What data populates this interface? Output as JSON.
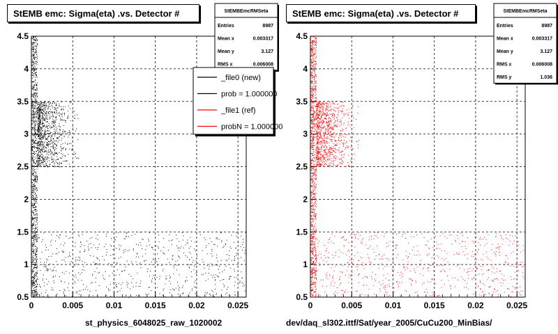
{
  "panels": [
    {
      "title": "StEMB emc: Sigma(eta) .vs. Detector #",
      "xlabel": "st_physics_6048025_raw_1020002",
      "stats": {
        "name": "StEMBEmcRMSeta",
        "rows": [
          {
            "label": "Entries",
            "value": "8987"
          },
          {
            "label": "Mean x",
            "value": "0.003317"
          },
          {
            "label": "Mean y",
            "value": "3.127"
          },
          {
            "label": "RMS x",
            "value": "0.006008"
          }
        ]
      },
      "legend": [
        {
          "text": "_file0 (new)",
          "color": "#000000"
        },
        {
          "text": "prob = 1.000000",
          "color": "#000000"
        },
        {
          "text": "_file1 (ref)",
          "color": "#ff0000"
        },
        {
          "text": "probN = 1.000000",
          "color": "#ff0000"
        }
      ],
      "marker_color": "#000000"
    },
    {
      "title": "StEMB emc: Sigma(eta) .vs. Detector #",
      "xlabel": "dev/daq_sl302.ittf/Sat/year_2005/CuCu200_MinBias/",
      "stats": {
        "name": "StEMBEmcRMSeta",
        "rows": [
          {
            "label": "Entries",
            "value": "8987"
          },
          {
            "label": "Mean x",
            "value": "0.003317"
          },
          {
            "label": "Mean y",
            "value": "3.127"
          },
          {
            "label": "RMS x",
            "value": "0.006008"
          },
          {
            "label": "RMS y",
            "value": "1.036"
          }
        ]
      },
      "marker_color": "#ff0000"
    }
  ],
  "chart_data": [
    {
      "type": "scatter",
      "title": "StEMB emc: Sigma(eta) .vs. Detector #",
      "xlabel": "st_physics_6048025_raw_1020002",
      "xlim": [
        0,
        0.026
      ],
      "ylim": [
        0.5,
        4.5
      ],
      "xticks": [
        "0",
        "0.005",
        "0.01",
        "0.015",
        "0.02",
        "0.025"
      ],
      "yticks": [
        "0.5",
        "1",
        "1.5",
        "2",
        "2.5",
        "3",
        "3.5",
        "4",
        "4.5"
      ],
      "grid": true,
      "legend_position": "top-right",
      "series": [
        {
          "name": "_file0 (new)",
          "color": "#000000",
          "regions": [
            {
              "x": [
                0.0,
                0.0007
              ],
              "y": [
                0.5,
                4.5
              ],
              "density": "dense"
            },
            {
              "x": [
                0.0007,
                0.006
              ],
              "y": [
                2.5,
                3.5
              ],
              "density": "medium"
            },
            {
              "x": [
                0.0,
                0.026
              ],
              "y": [
                0.5,
                1.5
              ],
              "density": "sparse"
            }
          ]
        }
      ]
    },
    {
      "type": "scatter",
      "title": "StEMB emc: Sigma(eta) .vs. Detector #",
      "xlabel": "dev/daq_sl302.ittf/Sat/year_2005/CuCu200_MinBias/",
      "xlim": [
        0,
        0.026
      ],
      "ylim": [
        0.5,
        4.5
      ],
      "xticks": [
        "0",
        "0.005",
        "0.01",
        "0.015",
        "0.02",
        "0.025"
      ],
      "yticks": [
        "0.5",
        "1",
        "1.5",
        "2",
        "2.5",
        "3",
        "3.5",
        "4",
        "4.5"
      ],
      "grid": true,
      "series": [
        {
          "name": "_file1 (ref)",
          "color": "#ff0000",
          "regions": [
            {
              "x": [
                0.0,
                0.0007
              ],
              "y": [
                0.5,
                4.5
              ],
              "density": "dense"
            },
            {
              "x": [
                0.0007,
                0.006
              ],
              "y": [
                2.5,
                3.5
              ],
              "density": "medium"
            },
            {
              "x": [
                0.0,
                0.026
              ],
              "y": [
                0.5,
                1.5
              ],
              "density": "sparse"
            }
          ]
        }
      ]
    }
  ]
}
